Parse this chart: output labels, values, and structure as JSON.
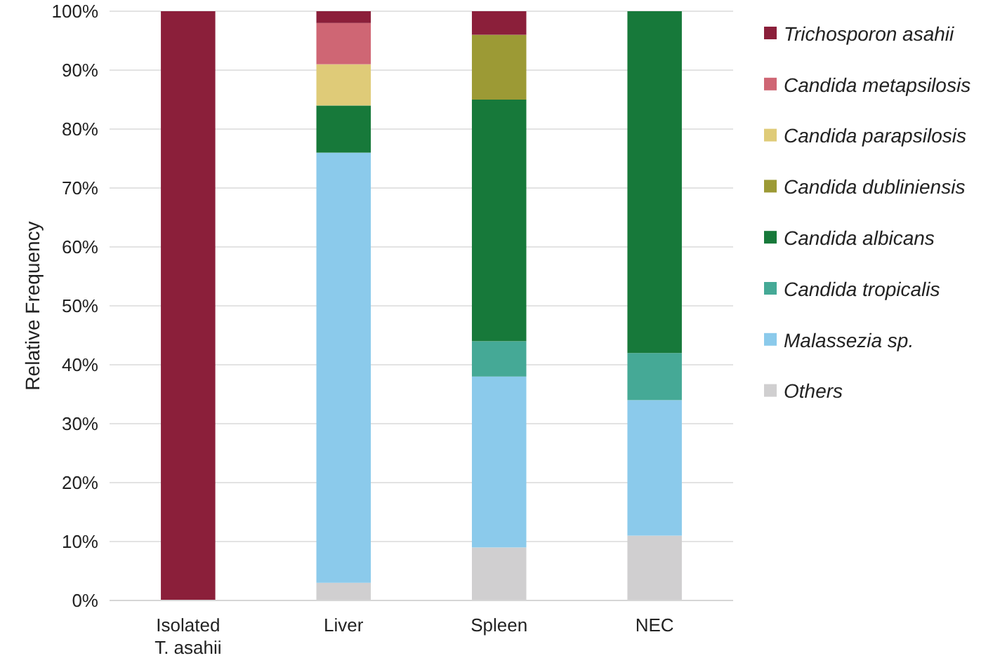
{
  "chart_data": {
    "type": "bar",
    "stacked": true,
    "ylabel": "Relative Frequency",
    "categories": [
      "Isolated T. asahii",
      "Liver",
      "Spleen",
      "NEC"
    ],
    "series": [
      {
        "name": "Others",
        "color": "#d0cfd0",
        "values": [
          0,
          3,
          9,
          11
        ]
      },
      {
        "name": "Malassezia sp.",
        "color": "#8bcaeb",
        "values": [
          0,
          73,
          29,
          23
        ]
      },
      {
        "name": "Candida tropicalis",
        "color": "#45a996",
        "values": [
          0,
          0,
          6,
          8
        ]
      },
      {
        "name": "Candida albicans",
        "color": "#17793a",
        "values": [
          0,
          8,
          41,
          58
        ]
      },
      {
        "name": "Candida dubliniensis",
        "color": "#9c9a35",
        "values": [
          0,
          0,
          11,
          0
        ]
      },
      {
        "name": "Candida parapsilosis",
        "color": "#dfcb78",
        "values": [
          0,
          7,
          0,
          0
        ]
      },
      {
        "name": "Candida metapsilosis",
        "color": "#cf6674",
        "values": [
          0,
          7,
          0,
          0
        ]
      },
      {
        "name": "Trichosporon asahii",
        "color": "#8b1f3a",
        "values": [
          100,
          2,
          4,
          0
        ]
      }
    ],
    "ylim": [
      0,
      100
    ],
    "yticks": [
      {
        "value": 0,
        "label": "0%"
      },
      {
        "value": 10,
        "label": "10%"
      },
      {
        "value": 20,
        "label": "20%"
      },
      {
        "value": 30,
        "label": "30%"
      },
      {
        "value": 40,
        "label": "40%"
      },
      {
        "value": 50,
        "label": "50%"
      },
      {
        "value": 60,
        "label": "60%"
      },
      {
        "value": 70,
        "label": "70%"
      },
      {
        "value": 80,
        "label": "80%"
      },
      {
        "value": 90,
        "label": "90%"
      },
      {
        "value": 100,
        "label": "100%"
      }
    ],
    "grid": "y",
    "legend": "right"
  }
}
